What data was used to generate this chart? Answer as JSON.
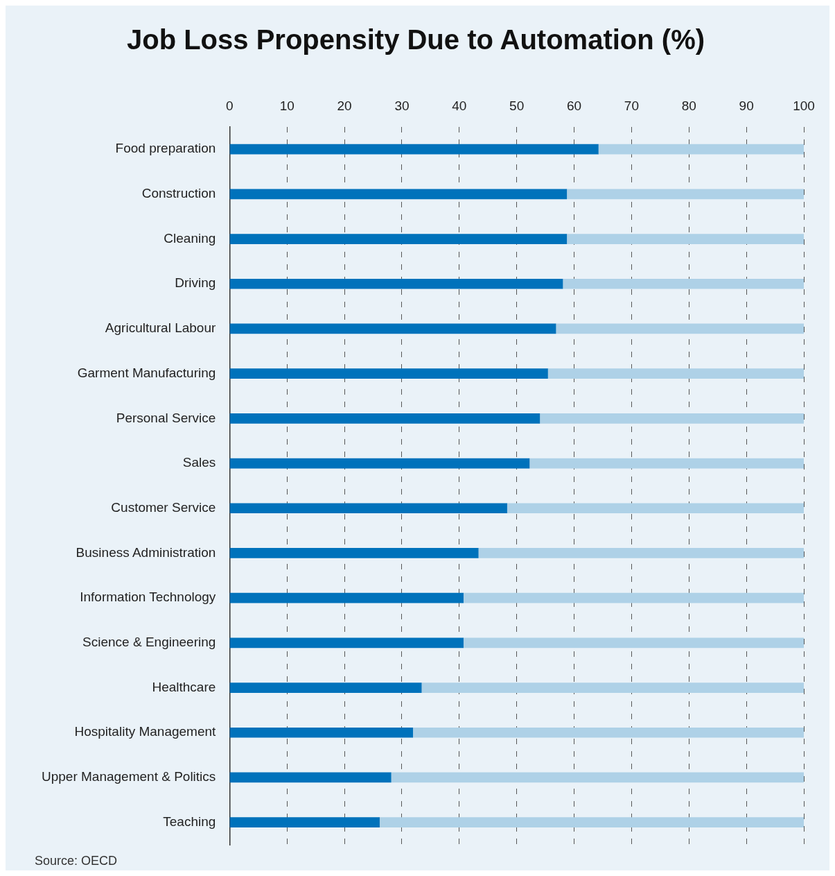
{
  "chart_data": {
    "type": "bar",
    "title": "Job Loss Propensity Due to Automation (%)",
    "orientation": "horizontal",
    "stacked": true,
    "categories": [
      "Food preparation",
      "Construction",
      "Cleaning",
      "Driving",
      "Agricultural Labour",
      "Garment Manufacturing",
      "Personal Service",
      "Sales",
      "Customer Service",
      "Business Administration",
      "Information Technology",
      "Science & Engineering",
      "Healthcare",
      "Hospitality Management",
      "Upper Management & Politics",
      "Teaching"
    ],
    "series": [
      {
        "color": "#0072bb",
        "values": [
          64.2,
          58.7,
          58.7,
          58.0,
          56.8,
          55.4,
          54.0,
          52.2,
          48.3,
          43.3,
          40.7,
          40.7,
          33.4,
          31.9,
          28.1,
          26.1
        ]
      },
      {
        "color": "#aed1e7",
        "values": [
          35.8,
          41.3,
          41.3,
          42.0,
          43.2,
          44.6,
          46.0,
          47.8,
          51.7,
          56.7,
          59.3,
          59.3,
          66.6,
          68.1,
          71.9,
          73.9
        ]
      }
    ],
    "xlim": [
      0,
      100
    ],
    "xticks": [
      0,
      10,
      20,
      30,
      40,
      50,
      60,
      70,
      80,
      90,
      100
    ],
    "grid": "x",
    "legend": false,
    "annotations": [
      "Source: OECD"
    ]
  }
}
